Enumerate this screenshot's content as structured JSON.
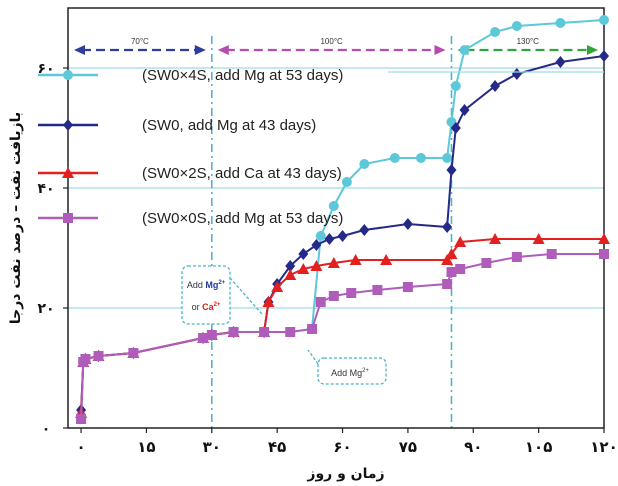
{
  "chart_data": {
    "type": "line",
    "xlabel": "زمان و روز",
    "ylabel": "بازیافت نفت – درصد نفت درجا",
    "xlim": [
      -3,
      120
    ],
    "ylim": [
      0,
      70
    ],
    "x_ticks": [
      0,
      15,
      30,
      45,
      60,
      75,
      90,
      105,
      120
    ],
    "x_tick_labels": [
      "۰",
      "۱۵",
      "۳۰",
      "۴۵",
      "۶۰",
      "۷۵",
      "۹۰",
      "۱۰۵",
      "۱۲۰"
    ],
    "y_ticks": [
      0,
      20,
      40,
      60
    ],
    "y_tick_labels": [
      "۰",
      "۲۰",
      "۴۰",
      "۶۰"
    ],
    "grid": false,
    "legend_position": "top-left",
    "reference_lines_y": [
      20,
      40,
      60
    ],
    "phase_boundaries_x": [
      30,
      85
    ],
    "phases": [
      {
        "label": "70°C",
        "from": -3,
        "to": 30,
        "color": "#2f3d9a"
      },
      {
        "label": "100°C",
        "from": 30,
        "to": 85,
        "color": "#b64bb0"
      },
      {
        "label": "130°C",
        "from": 85,
        "to": 120,
        "color": "#2fa53a"
      }
    ],
    "annotations": [
      {
        "text": "Add ",
        "ions": [
          {
            "text": "Mg",
            "sup": "2+",
            "color": "#1a3aa6"
          }
        ],
        "line2": "or ",
        "ions2": [
          {
            "text": "Ca",
            "sup": "2+",
            "color": "#d42020"
          }
        ],
        "x": 43,
        "y": 23
      },
      {
        "text": "Add Mg",
        "sup": "2+",
        "x": 54,
        "y": 11
      }
    ],
    "series": [
      {
        "name": "(SW0×4S, add Mg at 53 days)",
        "color": "#5cc8d8",
        "marker": "circle",
        "x": [
          0,
          0.5,
          1,
          4,
          12,
          28,
          30,
          35,
          42,
          48,
          53,
          55,
          58,
          61,
          65,
          72,
          78,
          84,
          85,
          86,
          88,
          95,
          100,
          110,
          120
        ],
        "y": [
          2,
          11,
          11.5,
          12,
          12.5,
          15,
          15.5,
          16,
          16,
          16,
          16.5,
          32,
          37,
          41,
          44,
          45,
          45,
          45,
          51,
          57,
          63,
          66,
          67,
          67.5,
          68
        ]
      },
      {
        "name": "(SW0, add Mg at 43 days)",
        "color": "#252a88",
        "marker": "diamond",
        "x": [
          0,
          0.5,
          1,
          4,
          12,
          28,
          30,
          35,
          42,
          43,
          45,
          48,
          51,
          54,
          57,
          60,
          65,
          75,
          84,
          85,
          86,
          88,
          95,
          100,
          110,
          120
        ],
        "y": [
          3,
          11,
          11.5,
          12,
          12.5,
          15,
          15.5,
          16,
          16,
          21,
          24,
          27,
          29,
          30.5,
          31.5,
          32,
          33,
          34,
          33.5,
          43,
          50,
          53,
          57,
          59,
          61,
          62
        ]
      },
      {
        "name": "(SW0×2S, add Ca at 43 days)",
        "color": "#e32020",
        "marker": "triangle",
        "x": [
          0,
          0.5,
          1,
          4,
          12,
          28,
          30,
          35,
          42,
          43,
          45,
          48,
          51,
          54,
          58,
          63,
          70,
          84,
          85,
          87,
          95,
          105,
          120
        ],
        "y": [
          2.5,
          11,
          11.5,
          12,
          12.5,
          15,
          15.5,
          16,
          16,
          21,
          23.5,
          25.5,
          26.5,
          27,
          27.5,
          28,
          28,
          28,
          29,
          31,
          31.5,
          31.5,
          31.5
        ]
      },
      {
        "name": "(SW0×0S, add Mg at 53 days)",
        "color": "#b05cbb",
        "marker": "square",
        "x": [
          0,
          0.5,
          1,
          4,
          12,
          28,
          30,
          35,
          42,
          48,
          53,
          55,
          58,
          62,
          68,
          75,
          84,
          85,
          87,
          93,
          100,
          108,
          120
        ],
        "y": [
          1.5,
          11,
          11.5,
          12,
          12.5,
          15,
          15.5,
          16,
          16,
          16,
          16.5,
          21,
          22,
          22.5,
          23,
          23.5,
          24,
          26,
          26.5,
          27.5,
          28.5,
          29,
          29
        ]
      }
    ]
  }
}
